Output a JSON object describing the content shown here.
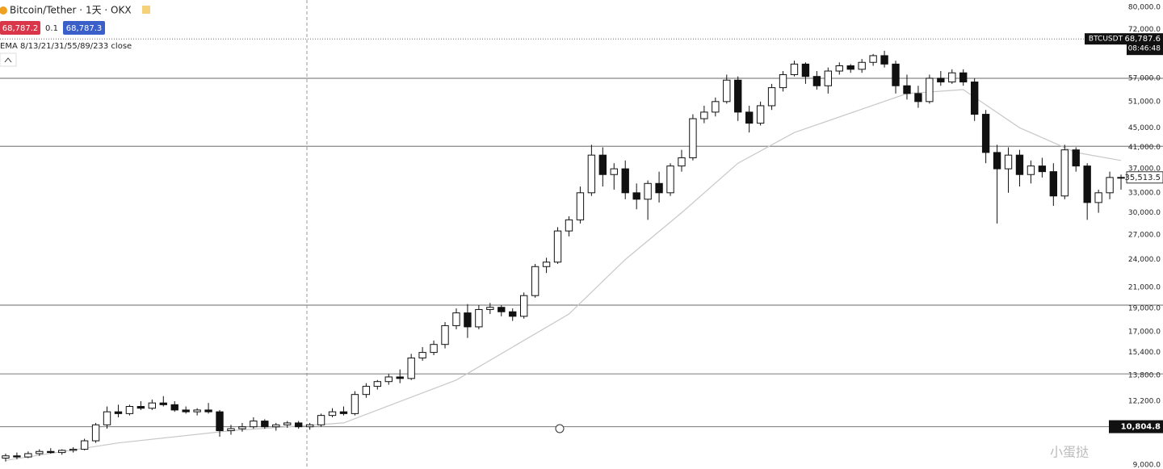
{
  "header": {
    "title": "Bitcoin/Tether · 1天 · OKX",
    "bid": "68,787.2",
    "spread": "0.1",
    "ask": "68,787.3",
    "indicator": "EMA 8/13/21/31/55/89/233 close",
    "watermark": "小蛋挞"
  },
  "chart_data": {
    "type": "candlestick",
    "symbol": "BTCUSDT",
    "log_scale": true,
    "ylim": [
      9000,
      80000
    ],
    "yticks": [
      {
        "value": 80000,
        "label": "80,000.0"
      },
      {
        "value": 72000,
        "label": "72,000.0"
      },
      {
        "value": 57000,
        "label": "57,000.0"
      },
      {
        "value": 51000,
        "label": "51,000.0"
      },
      {
        "value": 45000,
        "label": "45,000.0"
      },
      {
        "value": 41000,
        "label": "41,000.0"
      },
      {
        "value": 37000,
        "label": "37,000.0"
      },
      {
        "value": 33000,
        "label": "33,000.0"
      },
      {
        "value": 30000,
        "label": "30,000.0"
      },
      {
        "value": 27000,
        "label": "27,000.0"
      },
      {
        "value": 24000,
        "label": "24,000.0"
      },
      {
        "value": 21000,
        "label": "21,000.0"
      },
      {
        "value": 19000,
        "label": "19,000.0"
      },
      {
        "value": 17000,
        "label": "17,000.0"
      },
      {
        "value": 15400,
        "label": "15,400.0"
      },
      {
        "value": 13800,
        "label": "13,800.0"
      },
      {
        "value": 12200,
        "label": "12,200.0"
      },
      {
        "value": 9000,
        "label": "9,000.0"
      }
    ],
    "last_price": {
      "value": 68787.6,
      "label": "68,787.6"
    },
    "countdown": "08:46:48",
    "close_price": {
      "value": 35513.5,
      "label": "35,513.5"
    },
    "marked_level": {
      "value": 10804.8,
      "label": "10,804.8"
    },
    "levels": [
      57000,
      41200,
      19300,
      13900
    ],
    "color": "#111111",
    "candles": [
      [
        9300,
        9500,
        9150,
        9400
      ],
      [
        9400,
        9550,
        9250,
        9350
      ],
      [
        9350,
        9600,
        9300,
        9500
      ],
      [
        9500,
        9700,
        9400,
        9600
      ],
      [
        9600,
        9750,
        9500,
        9550
      ],
      [
        9550,
        9700,
        9450,
        9650
      ],
      [
        9650,
        9800,
        9550,
        9700
      ],
      [
        9700,
        10200,
        9650,
        10100
      ],
      [
        10100,
        11000,
        10000,
        10900
      ],
      [
        10900,
        11900,
        10700,
        11600
      ],
      [
        11600,
        12000,
        11300,
        11500
      ],
      [
        11500,
        12000,
        11400,
        11900
      ],
      [
        11900,
        12200,
        11700,
        11800
      ],
      [
        11800,
        12300,
        11700,
        12100
      ],
      [
        12100,
        12500,
        11900,
        12000
      ],
      [
        12000,
        12200,
        11600,
        11700
      ],
      [
        11700,
        11900,
        11500,
        11600
      ],
      [
        11600,
        11800,
        11400,
        11700
      ],
      [
        11700,
        12100,
        11500,
        11600
      ],
      [
        11600,
        11700,
        10300,
        10600
      ],
      [
        10600,
        10900,
        10400,
        10700
      ],
      [
        10700,
        11000,
        10550,
        10800
      ],
      [
        10800,
        11300,
        10700,
        11100
      ],
      [
        11100,
        11200,
        10700,
        10800
      ],
      [
        10800,
        11000,
        10600,
        10900
      ],
      [
        10900,
        11100,
        10750,
        11000
      ],
      [
        11000,
        11100,
        10700,
        10800
      ],
      [
        10800,
        11000,
        10650,
        10900
      ],
      [
        10900,
        11500,
        10800,
        11400
      ],
      [
        11400,
        11800,
        11300,
        11600
      ],
      [
        11600,
        11900,
        11400,
        11500
      ],
      [
        11500,
        12800,
        11400,
        12600
      ],
      [
        12600,
        13300,
        12400,
        13100
      ],
      [
        13100,
        13500,
        12900,
        13400
      ],
      [
        13400,
        13900,
        13200,
        13700
      ],
      [
        13700,
        14200,
        13300,
        13600
      ],
      [
        13600,
        15300,
        13500,
        15000
      ],
      [
        15000,
        15800,
        14800,
        15400
      ],
      [
        15400,
        16300,
        15200,
        16000
      ],
      [
        16000,
        17800,
        15700,
        17500
      ],
      [
        17500,
        19000,
        17200,
        18600
      ],
      [
        18600,
        19400,
        16500,
        17400
      ],
      [
        17400,
        19300,
        17200,
        18900
      ],
      [
        18900,
        19500,
        18500,
        19100
      ],
      [
        19100,
        19300,
        18300,
        18700
      ],
      [
        18700,
        19000,
        17900,
        18300
      ],
      [
        18300,
        20500,
        18100,
        20200
      ],
      [
        20200,
        23500,
        20000,
        23200
      ],
      [
        23200,
        24200,
        22500,
        23700
      ],
      [
        23700,
        28000,
        23500,
        27500
      ],
      [
        27500,
        29500,
        26800,
        29000
      ],
      [
        29000,
        34000,
        28500,
        33000
      ],
      [
        33000,
        41500,
        32500,
        39500
      ],
      [
        39500,
        41000,
        34000,
        36000
      ],
      [
        36000,
        38000,
        33500,
        37000
      ],
      [
        37000,
        38500,
        32000,
        33000
      ],
      [
        33000,
        34500,
        30500,
        32000
      ],
      [
        32000,
        35000,
        29000,
        34500
      ],
      [
        34500,
        36500,
        31500,
        33000
      ],
      [
        33000,
        38000,
        32500,
        37500
      ],
      [
        37500,
        40500,
        36500,
        39000
      ],
      [
        39000,
        48000,
        38500,
        47000
      ],
      [
        47000,
        50000,
        46000,
        48500
      ],
      [
        48500,
        52000,
        47500,
        51000
      ],
      [
        51000,
        58000,
        50500,
        56500
      ],
      [
        56500,
        57500,
        46500,
        48500
      ],
      [
        48500,
        50000,
        44000,
        46000
      ],
      [
        46000,
        51000,
        45500,
        50000
      ],
      [
        50000,
        55500,
        49000,
        54500
      ],
      [
        54500,
        59000,
        53500,
        58000
      ],
      [
        58000,
        62000,
        57500,
        61000
      ],
      [
        61000,
        61500,
        55500,
        57500
      ],
      [
        57500,
        59000,
        54000,
        55000
      ],
      [
        55000,
        60000,
        53000,
        59000
      ],
      [
        59000,
        61500,
        58000,
        60500
      ],
      [
        60500,
        61000,
        58500,
        59500
      ],
      [
        59500,
        62500,
        58500,
        61500
      ],
      [
        61500,
        64000,
        60500,
        63500
      ],
      [
        63500,
        65000,
        60000,
        61000
      ],
      [
        61000,
        62000,
        53000,
        55000
      ],
      [
        55000,
        58000,
        51500,
        53000
      ],
      [
        53000,
        55000,
        49500,
        51000
      ],
      [
        51000,
        58000,
        50500,
        57000
      ],
      [
        57000,
        59000,
        55000,
        56000
      ],
      [
        56000,
        59500,
        55500,
        58500
      ],
      [
        58500,
        59500,
        55000,
        56000
      ],
      [
        56000,
        57000,
        46500,
        48000
      ],
      [
        48000,
        49000,
        38000,
        40000
      ],
      [
        40000,
        41500,
        28500,
        37000
      ],
      [
        37000,
        41000,
        33000,
        39500
      ],
      [
        39500,
        40500,
        34000,
        36000
      ],
      [
        36000,
        38500,
        34500,
        37500
      ],
      [
        37500,
        39000,
        35500,
        36500
      ],
      [
        36500,
        38000,
        31000,
        32500
      ],
      [
        32500,
        41500,
        32000,
        40500
      ],
      [
        40500,
        41000,
        36500,
        37500
      ],
      [
        37500,
        38000,
        29000,
        31500
      ],
      [
        31500,
        33500,
        30000,
        33000
      ],
      [
        33000,
        36500,
        32000,
        35500
      ],
      [
        35500,
        36000,
        33500,
        35513.5
      ]
    ],
    "ema_line": {
      "color": "#c8c8c8",
      "x": [
        0,
        10,
        20,
        30,
        40,
        50,
        55,
        60,
        65,
        70,
        80,
        85,
        90,
        95,
        99
      ],
      "values": [
        9200,
        10000,
        10600,
        11000,
        13500,
        18500,
        24000,
        30000,
        38000,
        44000,
        53000,
        54000,
        45000,
        40000,
        38500
      ]
    }
  }
}
